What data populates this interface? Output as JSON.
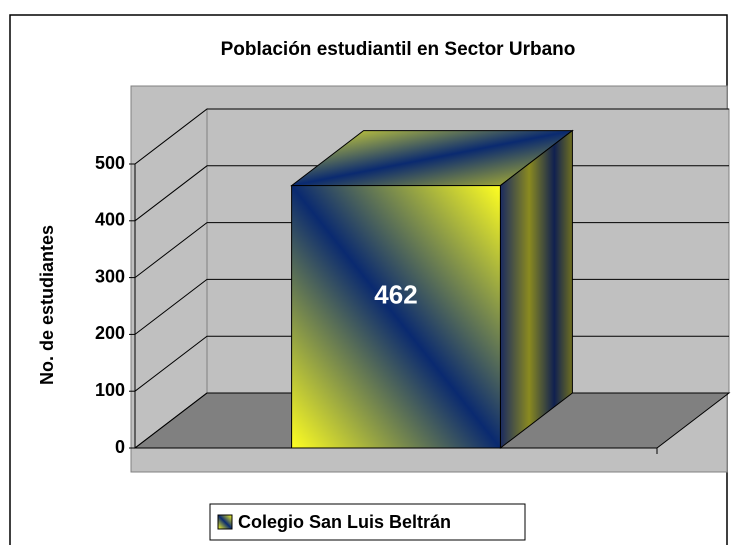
{
  "chart_data": {
    "type": "bar3d",
    "title": "Población estudiantil en Sector Urbano",
    "y_label": "No. de estudiantes",
    "categories": [
      null
    ],
    "series": [
      {
        "name": "Colegio San Luis Beltrán",
        "color": "#ffff33",
        "color2": "#0a2a6e",
        "values": [
          462
        ]
      }
    ],
    "ylim": [
      0,
      500
    ],
    "yticks": [
      0,
      100,
      200,
      300,
      400,
      500
    ],
    "grid": true,
    "legend": "bottom"
  }
}
